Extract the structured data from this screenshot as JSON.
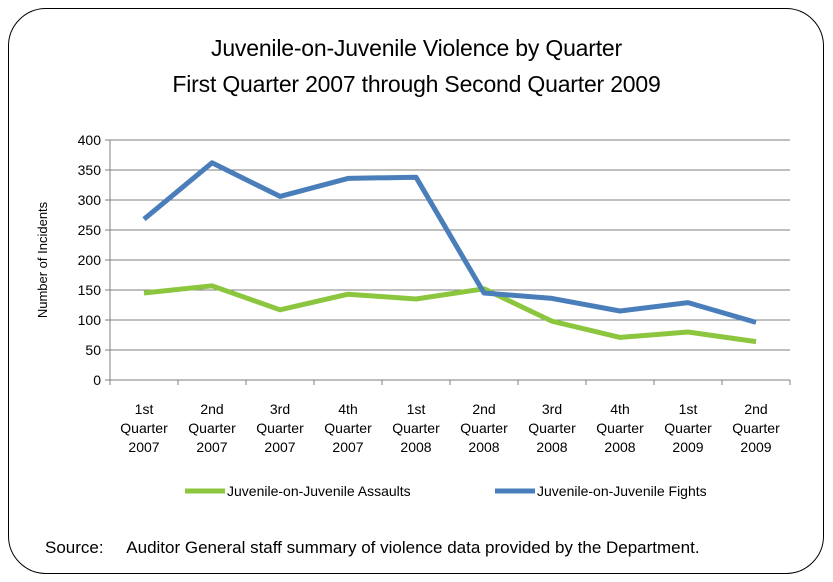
{
  "chart_data": {
    "type": "line",
    "title": "Juvenile-on-Juvenile Violence by Quarter",
    "subtitle": "First Quarter 2007 through Second Quarter 2009",
    "xlabel": "",
    "ylabel": "Number of Incidents",
    "ylim": [
      0,
      400
    ],
    "yticks": [
      "0",
      "50",
      "100",
      "150",
      "200",
      "250",
      "300",
      "350",
      "400"
    ],
    "categories": [
      [
        "1st",
        "Quarter",
        "2007"
      ],
      [
        "2nd",
        "Quarter",
        "2007"
      ],
      [
        "3rd",
        "Quarter",
        "2007"
      ],
      [
        "4th",
        "Quarter",
        "2007"
      ],
      [
        "1st",
        "Quarter",
        "2008"
      ],
      [
        "2nd",
        "Quarter",
        "2008"
      ],
      [
        "3rd",
        "Quarter",
        "2008"
      ],
      [
        "4th",
        "Quarter",
        "2008"
      ],
      [
        "1st",
        "Quarter",
        "2009"
      ],
      [
        "2nd",
        "Quarter",
        "2009"
      ]
    ],
    "series": [
      {
        "name": "Juvenile-on-Juvenile  Assaults",
        "color": "#8CC63F",
        "values": [
          145,
          157,
          117,
          143,
          135,
          152,
          98,
          71,
          80,
          64
        ]
      },
      {
        "name": "Juvenile-on-Juvenile  Fights",
        "color": "#4A7EBB",
        "values": [
          268,
          362,
          306,
          336,
          338,
          145,
          136,
          115,
          129,
          96
        ]
      }
    ],
    "grid": true,
    "legend": "bottom"
  },
  "source": {
    "label": "Source:",
    "text": "Auditor General staff summary of violence data provided by the Department."
  }
}
